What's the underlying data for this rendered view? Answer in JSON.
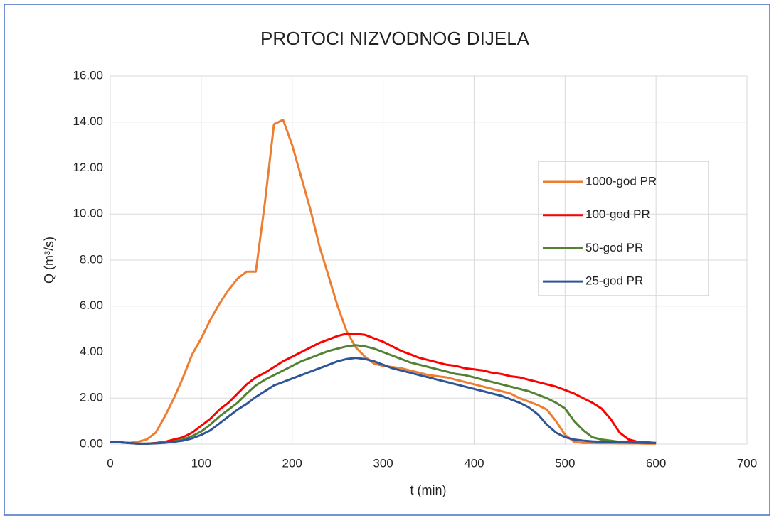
{
  "chart_data": {
    "type": "line",
    "title": "PROTOCI NIZVODNOG DIJELA",
    "x_label": "t (min)",
    "y_label": "Q (m³/s)",
    "x": [
      0,
      10,
      20,
      30,
      40,
      50,
      60,
      70,
      80,
      90,
      100,
      110,
      120,
      130,
      140,
      150,
      160,
      170,
      180,
      190,
      200,
      210,
      220,
      230,
      240,
      250,
      260,
      270,
      280,
      290,
      300,
      310,
      320,
      330,
      340,
      350,
      360,
      370,
      380,
      390,
      400,
      410,
      420,
      430,
      440,
      450,
      460,
      470,
      480,
      490,
      500,
      510,
      520,
      530,
      540,
      550,
      560,
      570,
      580,
      590,
      600
    ],
    "series": [
      {
        "name": "1000-god PR",
        "color": "#ed7d31",
        "values": [
          0.1,
          0.08,
          0.05,
          0.1,
          0.2,
          0.5,
          1.2,
          2.0,
          2.9,
          3.9,
          4.6,
          5.4,
          6.1,
          6.7,
          7.2,
          7.5,
          7.5,
          10.5,
          13.9,
          14.1,
          13.0,
          11.6,
          10.2,
          8.6,
          7.3,
          6.0,
          4.9,
          4.2,
          3.8,
          3.5,
          3.4,
          3.35,
          3.3,
          3.2,
          3.1,
          3.0,
          2.95,
          2.9,
          2.8,
          2.7,
          2.6,
          2.5,
          2.4,
          2.3,
          2.2,
          2.0,
          1.85,
          1.7,
          1.5,
          1.0,
          0.4,
          0.1,
          0.05,
          0.05,
          0.04,
          0.04,
          0.03,
          0.03,
          0.03,
          0.02,
          0.02
        ]
      },
      {
        "name": "100-god PR",
        "color": "#ff0000",
        "values": [
          0.1,
          0.08,
          0.05,
          0.02,
          0.02,
          0.05,
          0.1,
          0.2,
          0.3,
          0.5,
          0.8,
          1.1,
          1.5,
          1.8,
          2.2,
          2.6,
          2.9,
          3.1,
          3.35,
          3.6,
          3.8,
          4.0,
          4.2,
          4.4,
          4.55,
          4.7,
          4.8,
          4.8,
          4.75,
          4.6,
          4.45,
          4.25,
          4.05,
          3.9,
          3.75,
          3.65,
          3.55,
          3.45,
          3.4,
          3.3,
          3.25,
          3.2,
          3.1,
          3.05,
          2.95,
          2.9,
          2.8,
          2.7,
          2.6,
          2.5,
          2.35,
          2.2,
          2.0,
          1.8,
          1.55,
          1.1,
          0.5,
          0.2,
          0.1,
          0.08,
          0.05
        ]
      },
      {
        "name": "50-god PR",
        "color": "#548235",
        "values": [
          0.1,
          0.08,
          0.05,
          0.02,
          0.02,
          0.04,
          0.08,
          0.12,
          0.2,
          0.35,
          0.55,
          0.85,
          1.2,
          1.5,
          1.8,
          2.2,
          2.55,
          2.8,
          3.0,
          3.2,
          3.4,
          3.6,
          3.75,
          3.9,
          4.05,
          4.15,
          4.25,
          4.3,
          4.25,
          4.15,
          4.0,
          3.85,
          3.7,
          3.55,
          3.45,
          3.35,
          3.25,
          3.15,
          3.05,
          3.0,
          2.9,
          2.8,
          2.7,
          2.6,
          2.5,
          2.4,
          2.3,
          2.15,
          2.0,
          1.8,
          1.55,
          1.0,
          0.6,
          0.3,
          0.2,
          0.15,
          0.1,
          0.08,
          0.07,
          0.06,
          0.05
        ]
      },
      {
        "name": "25-god PR",
        "color": "#2f5597",
        "values": [
          0.1,
          0.08,
          0.05,
          0.02,
          0.02,
          0.03,
          0.06,
          0.1,
          0.15,
          0.25,
          0.4,
          0.6,
          0.9,
          1.2,
          1.5,
          1.75,
          2.05,
          2.3,
          2.55,
          2.7,
          2.85,
          3.0,
          3.15,
          3.3,
          3.45,
          3.6,
          3.7,
          3.75,
          3.7,
          3.6,
          3.45,
          3.3,
          3.2,
          3.1,
          3.0,
          2.9,
          2.8,
          2.7,
          2.6,
          2.5,
          2.4,
          2.3,
          2.2,
          2.1,
          1.95,
          1.8,
          1.6,
          1.3,
          0.85,
          0.5,
          0.3,
          0.2,
          0.15,
          0.12,
          0.1,
          0.09,
          0.08,
          0.07,
          0.06,
          0.05,
          0.05
        ]
      }
    ],
    "xlim": [
      0,
      700
    ],
    "xticks": [
      0,
      100,
      200,
      300,
      400,
      500,
      600,
      700
    ],
    "ylim": [
      0,
      16
    ],
    "yticks": [
      {
        "value": 0,
        "label": "0.00"
      },
      {
        "value": 2,
        "label": "2.00"
      },
      {
        "value": 4,
        "label": "4.00"
      },
      {
        "value": 6,
        "label": "6.00"
      },
      {
        "value": 8,
        "label": "8.00"
      },
      {
        "value": 10,
        "label": "10.00"
      },
      {
        "value": 12,
        "label": "12.00"
      },
      {
        "value": 14,
        "label": "14.00"
      },
      {
        "value": 16,
        "label": "16.00"
      }
    ],
    "grid": true,
    "legend": "right"
  }
}
